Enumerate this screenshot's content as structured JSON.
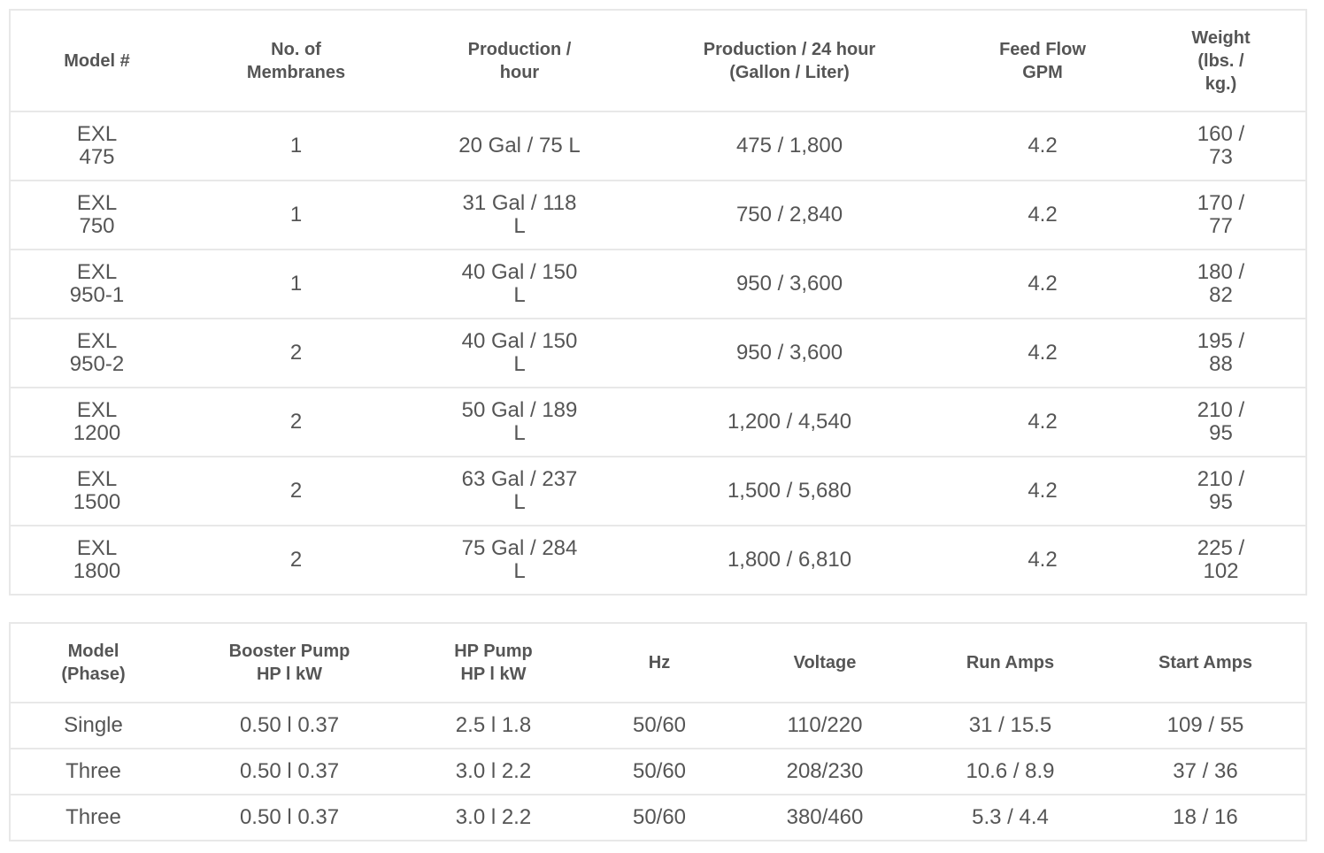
{
  "models_table": {
    "headers": [
      "Model #",
      "No. of\nMembranes",
      "Production /\nhour",
      "Production / 24 hour\n(Gallon / Liter)",
      "Feed Flow\nGPM",
      "Weight\n(lbs. /\nkg.)"
    ],
    "rows": [
      [
        "EXL\n475",
        "1",
        "20 Gal / 75 L",
        "475 / 1,800",
        "4.2",
        "160 /\n73"
      ],
      [
        "EXL\n750",
        "1",
        "31 Gal / 118\nL",
        "750 / 2,840",
        "4.2",
        "170 /\n77"
      ],
      [
        "EXL\n950-1",
        "1",
        "40 Gal / 150\nL",
        "950 / 3,600",
        "4.2",
        "180 /\n82"
      ],
      [
        "EXL\n950-2",
        "2",
        "40 Gal / 150\nL",
        "950 / 3,600",
        "4.2",
        "195 /\n88"
      ],
      [
        "EXL\n1200",
        "2",
        "50 Gal / 189\nL",
        "1,200 / 4,540",
        "4.2",
        "210 /\n95"
      ],
      [
        "EXL\n1500",
        "2",
        "63 Gal / 237\nL",
        "1,500 / 5,680",
        "4.2",
        "210 /\n95"
      ],
      [
        "EXL\n1800",
        "2",
        "75 Gal / 284\nL",
        "1,800 / 6,810",
        "4.2",
        "225 /\n102"
      ]
    ]
  },
  "electrical_table": {
    "headers": [
      "Model\n(Phase)",
      "Booster Pump\nHP l kW",
      "HP Pump\nHP l kW",
      "Hz",
      "Voltage",
      "Run Amps",
      "Start Amps"
    ],
    "rows": [
      [
        "Single",
        "0.50 l 0.37",
        "2.5 l 1.8",
        "50/60",
        "110/220",
        "31 / 15.5",
        "109 / 55"
      ],
      [
        "Three",
        "0.50 l 0.37",
        "3.0 l 2.2",
        "50/60",
        "208/230",
        "10.6 / 8.9",
        "37 / 36"
      ],
      [
        "Three",
        "0.50 l 0.37",
        "3.0 l 2.2",
        "50/60",
        "380/460",
        "5.3 / 4.4",
        "18 / 16"
      ]
    ]
  }
}
